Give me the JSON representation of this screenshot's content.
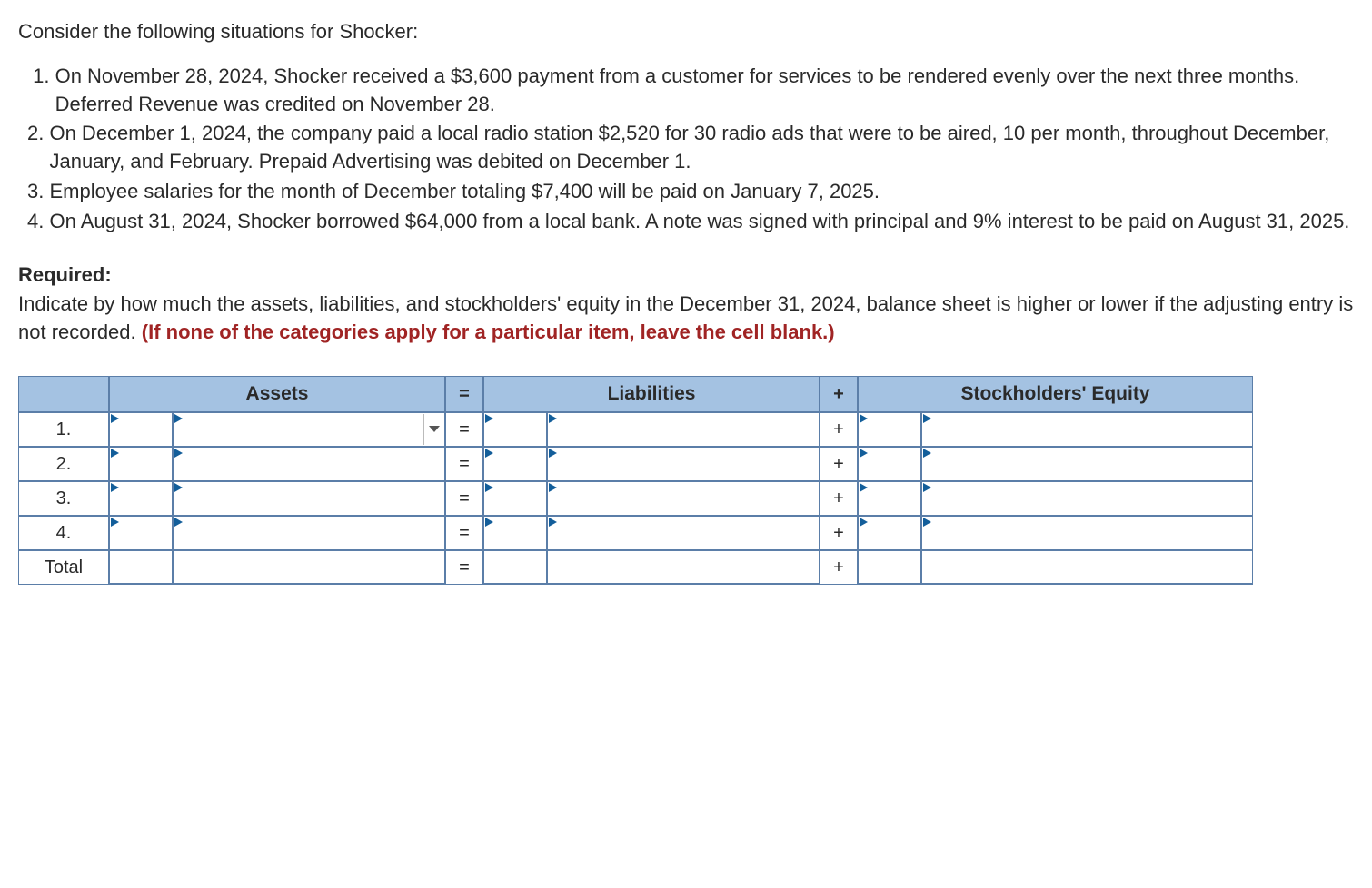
{
  "intro": "Consider the following situations for Shocker:",
  "situations": [
    {
      "num": "1.",
      "text": "On November 28, 2024, Shocker received a $3,600 payment from a customer for services to be rendered evenly over the next three months. Deferred Revenue was credited on November 28."
    },
    {
      "num": "2.",
      "text": "On December 1, 2024, the company paid a local radio station $2,520 for 30 radio ads that were to be aired, 10 per month, throughout December, January, and February. Prepaid Advertising was debited on December 1."
    },
    {
      "num": "3.",
      "text": "Employee salaries for the month of December totaling $7,400 will be paid on January 7, 2025."
    },
    {
      "num": "4.",
      "text": "On August 31, 2024, Shocker borrowed $64,000 from a local bank. A note was signed with principal and 9% interest to be paid on August 31, 2025."
    }
  ],
  "required_label": "Required:",
  "required_text": "Indicate by how much the assets, liabilities, and stockholders' equity in the December 31, 2024, balance sheet is higher or lower if the adjusting entry is not recorded. ",
  "required_hint": "(If none of the categories apply for a particular item, leave the cell blank.)",
  "table": {
    "col_widths": [
      "100px",
      "70px",
      "300px",
      "42px",
      "70px",
      "300px",
      "42px",
      "70px",
      "365px"
    ],
    "header_bg": "#a4c2e2",
    "border_color": "#5b7ea8",
    "indicator_color": "#135e9a",
    "hint_color": "#a02424",
    "headers": {
      "assets": "Assets",
      "eq": "=",
      "liabilities": "Liabilities",
      "plus": "+",
      "equity": "Stockholders' Equity"
    },
    "rows": [
      {
        "label": "1.",
        "eq": "=",
        "plus": "+",
        "show_dropdown": true
      },
      {
        "label": "2.",
        "eq": "=",
        "plus": "+",
        "show_dropdown": false
      },
      {
        "label": "3.",
        "eq": "=",
        "plus": "+",
        "show_dropdown": false
      },
      {
        "label": "4.",
        "eq": "=",
        "plus": "+",
        "show_dropdown": false
      }
    ],
    "total_row": {
      "label": "Total",
      "eq": "=",
      "plus": "+"
    }
  }
}
